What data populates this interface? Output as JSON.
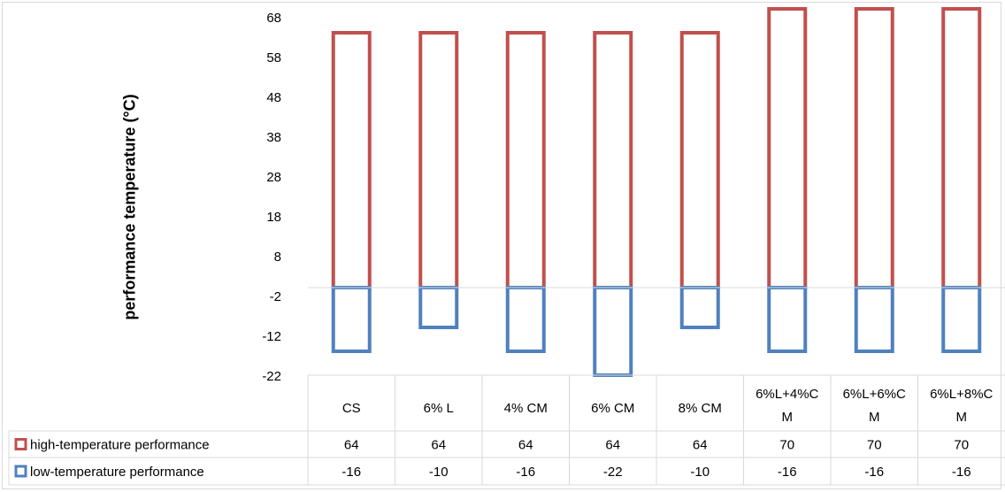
{
  "chart_data": {
    "type": "bar",
    "title": "",
    "xlabel": "",
    "ylabel": "performance temperature (°C)",
    "ylim": [
      -22,
      68
    ],
    "yticks": [
      "68",
      "58",
      "48",
      "38",
      "28",
      "18",
      "8",
      "-2",
      "-12",
      "-22"
    ],
    "ytick_values": [
      68,
      58,
      48,
      38,
      28,
      18,
      8,
      -2,
      -12,
      -22
    ],
    "baseline": 0,
    "grid": false,
    "legend": "data-table",
    "categories": [
      [
        "CS"
      ],
      [
        "6% L"
      ],
      [
        "4% CM"
      ],
      [
        "6% CM"
      ],
      [
        "8% CM"
      ],
      [
        "6%L+4%C",
        "M"
      ],
      [
        "6%L+6%C",
        "M"
      ],
      [
        "6%L+8%C",
        "M"
      ]
    ],
    "series": [
      {
        "name": "high-temperature performance",
        "color": "#c0504d",
        "values": [
          64,
          64,
          64,
          64,
          64,
          70,
          70,
          70
        ],
        "labels": [
          "64",
          "64",
          "64",
          "64",
          "64",
          "70",
          "70",
          "70"
        ]
      },
      {
        "name": "low-temperature performance",
        "color": "#4f81bd",
        "values": [
          -16,
          -10,
          -16,
          -22,
          -10,
          -16,
          -16,
          -16
        ],
        "labels": [
          "-16",
          "-10",
          "-16",
          "-22",
          "-10",
          "-16",
          "-16",
          "-16"
        ]
      }
    ]
  }
}
